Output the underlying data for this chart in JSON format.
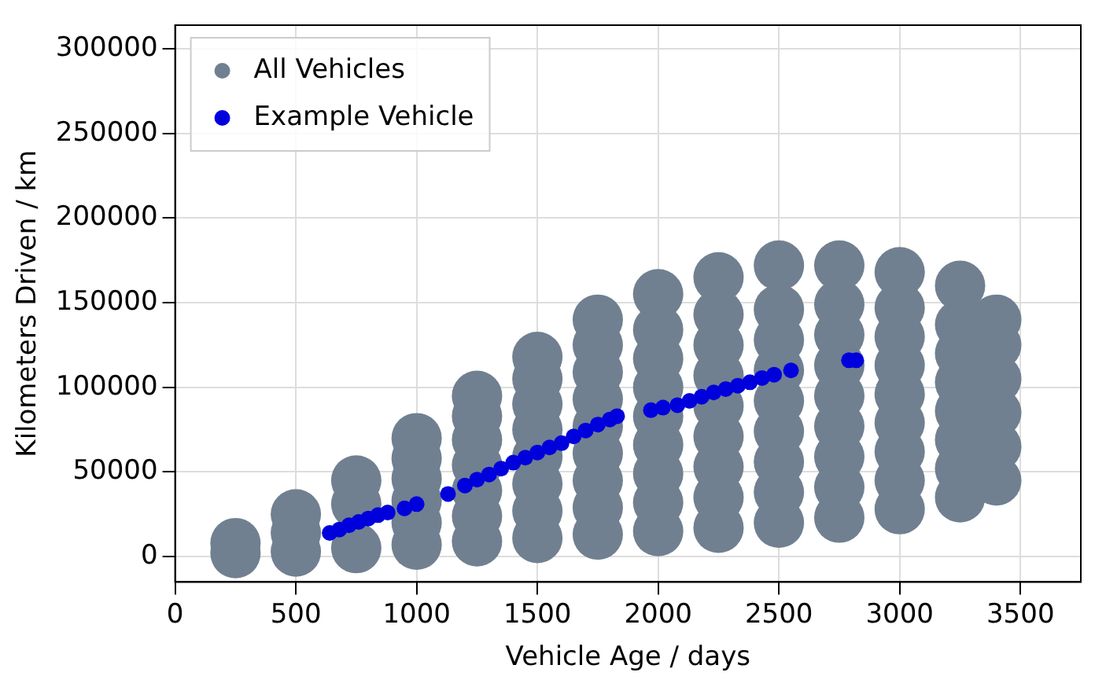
{
  "chart_data": {
    "type": "scatter",
    "xlabel": "Vehicle Age / days",
    "ylabel": "Kilometers Driven / km",
    "xlim": [
      0,
      3750
    ],
    "xticks": [
      0,
      500,
      1000,
      1500,
      2000,
      2500,
      3000,
      3500
    ],
    "ylim": [
      -15000,
      314000
    ],
    "yticks": [
      0,
      50000,
      100000,
      150000,
      200000,
      250000,
      300000
    ],
    "grid": true,
    "legend": "top left",
    "marker": "circle",
    "series": [
      {
        "name": "All Vehicles",
        "color": "#708090",
        "x": [
          250,
          250,
          500,
          500,
          500,
          750,
          750,
          750,
          1000,
          1000,
          1000,
          1000,
          1000,
          1000,
          1250,
          1250,
          1250,
          1250,
          1250,
          1250,
          1250,
          1500,
          1500,
          1500,
          1500,
          1500,
          1500,
          1500,
          1500,
          1750,
          1750,
          1750,
          1750,
          1750,
          1750,
          1750,
          1750,
          1750,
          2000,
          2000,
          2000,
          2000,
          2000,
          2000,
          2000,
          2000,
          2000,
          2250,
          2250,
          2250,
          2250,
          2250,
          2250,
          2250,
          2250,
          2250,
          2500,
          2500,
          2500,
          2500,
          2500,
          2500,
          2500,
          2500,
          2500,
          2750,
          2750,
          2750,
          2750,
          2750,
          2750,
          2750,
          2750,
          2750,
          3000,
          3000,
          3000,
          3000,
          3000,
          3000,
          3000,
          3000,
          3000,
          3250,
          3250,
          3250,
          3250,
          3250,
          3250,
          3250,
          3250,
          3400,
          3400,
          3400,
          3400,
          3400,
          3400
        ],
        "values": [
          2000,
          8000,
          3000,
          14000,
          25000,
          5000,
          31000,
          45000,
          7000,
          20000,
          33000,
          46000,
          58000,
          70000,
          9000,
          24000,
          39000,
          54000,
          69000,
          83000,
          95000,
          11000,
          27000,
          43000,
          59000,
          75000,
          90000,
          105000,
          118000,
          13000,
          29000,
          45000,
          61000,
          77000,
          93000,
          109000,
          125000,
          140000,
          15000,
          32000,
          49000,
          66000,
          83000,
          100000,
          117000,
          134000,
          155000,
          17000,
          35000,
          53000,
          71000,
          89000,
          107000,
          125000,
          143000,
          165000,
          20000,
          38000,
          56000,
          74000,
          92000,
          110000,
          128000,
          146000,
          172000,
          23000,
          41000,
          59000,
          77000,
          95000,
          113000,
          131000,
          149000,
          172000,
          28000,
          45000,
          62000,
          79000,
          96000,
          113000,
          130000,
          147000,
          168000,
          35000,
          52000,
          69000,
          86000,
          103000,
          120000,
          137000,
          160000,
          45000,
          65000,
          85000,
          105000,
          125000,
          140000
        ]
      },
      {
        "name": "Example Vehicle",
        "color": "#0000dd",
        "x": [
          640,
          680,
          720,
          760,
          800,
          840,
          880,
          950,
          1000,
          1130,
          1200,
          1250,
          1300,
          1350,
          1400,
          1450,
          1500,
          1550,
          1600,
          1650,
          1700,
          1750,
          1800,
          1830,
          1970,
          2020,
          2080,
          2130,
          2180,
          2230,
          2280,
          2330,
          2380,
          2430,
          2480,
          2550,
          2790,
          2820
        ],
        "values": [
          14000,
          16000,
          18500,
          20500,
          22500,
          24500,
          26000,
          28500,
          31000,
          37000,
          42000,
          45500,
          48500,
          52000,
          55500,
          58500,
          61500,
          64500,
          67000,
          71000,
          74500,
          78000,
          81000,
          83000,
          86500,
          88000,
          89500,
          92000,
          94500,
          97000,
          99000,
          101000,
          103000,
          105500,
          107500,
          110000,
          116000,
          116000
        ]
      }
    ]
  }
}
